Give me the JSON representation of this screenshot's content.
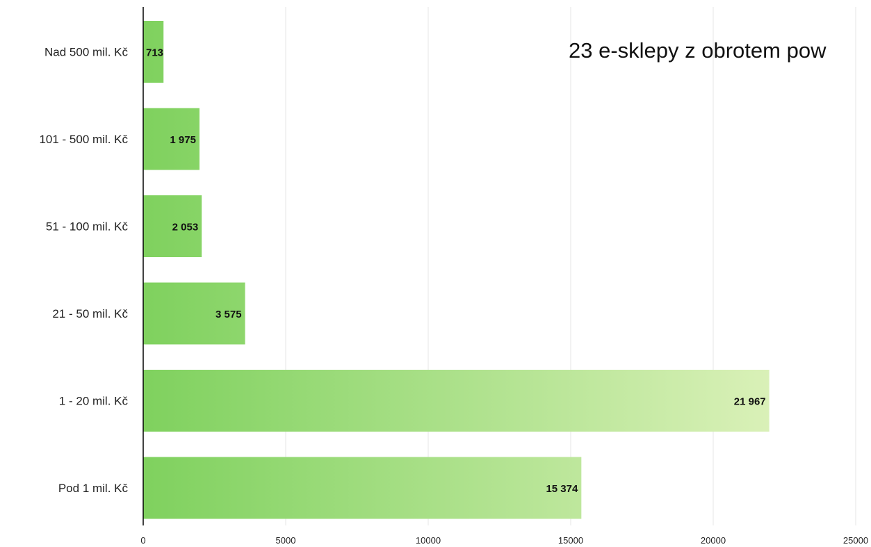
{
  "chart_data": {
    "type": "bar",
    "orientation": "horizontal",
    "categories": [
      "Nad 500 mil. Kč",
      "101 - 500 mil. Kč",
      "51 - 100 mil. Kč",
      "21 - 50 mil. Kč",
      "1 - 20 mil. Kč",
      "Pod 1 mil. Kč"
    ],
    "values": [
      713,
      1975,
      2053,
      3575,
      21967,
      15374
    ],
    "value_labels": [
      "713",
      "1 975",
      "2 053",
      "3 575",
      "21 967",
      "15 374"
    ],
    "x_ticks": [
      "0",
      "5000",
      "10000",
      "15000",
      "20000",
      "25000"
    ],
    "xlim": [
      0,
      25000
    ],
    "grid": true,
    "annotation": "23 e-sklepy z obrotem pow",
    "colors": {
      "bar_start": "#7fd15e",
      "bar_end": "#e6f5c4",
      "grid": "#e6e6e6",
      "axis": "#000000"
    }
  }
}
